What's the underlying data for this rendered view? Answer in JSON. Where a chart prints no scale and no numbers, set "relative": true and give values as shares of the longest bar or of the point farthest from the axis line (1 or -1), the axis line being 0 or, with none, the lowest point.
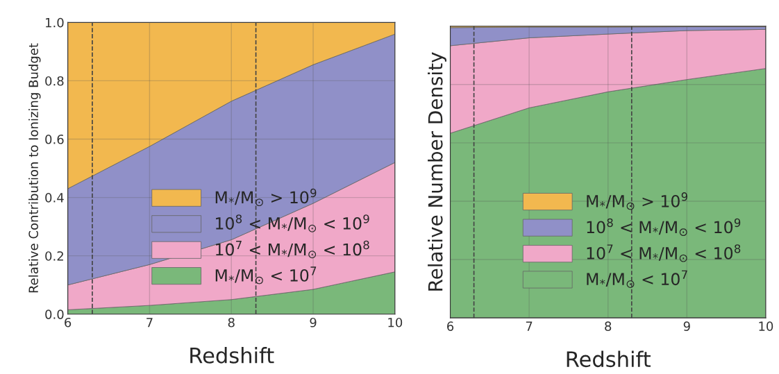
{
  "chart_data": [
    {
      "type": "area",
      "stacked": true,
      "xlabel": "Redshift",
      "ylabel": "Relative Contribution to Ionizing Budget",
      "x": [
        6,
        7,
        8,
        9,
        10
      ],
      "xlim": [
        6,
        10
      ],
      "xticks": [
        6,
        7,
        8,
        9,
        10
      ],
      "ylim": [
        0,
        1
      ],
      "yticks": [
        {
          "value": 0,
          "label": "0.0"
        },
        0.2,
        0.4,
        0.6,
        0.8,
        {
          "value": 1,
          "label": "1.0"
        }
      ],
      "grid": true,
      "legend": "bottom right",
      "series": [
        {
          "name": "M$_{*}$/M$_{⊙}$ < 10$^{7}$",
          "color": "#7ab87a",
          "values": [
            0.015,
            0.03,
            0.05,
            0.085,
            0.145
          ]
        },
        {
          "name": "10$^{7}$ < M$_{*}$/M$_{⊙}$ < 10$^{8}$",
          "color": "#f0a8c8",
          "values": [
            0.085,
            0.14,
            0.205,
            0.295,
            0.375
          ]
        },
        {
          "name": "10$^{8}$ < M$_{*}$/M$_{⊙}$ < 10$^{9}$",
          "color": "#9090c8",
          "values": [
            0.33,
            0.405,
            0.475,
            0.475,
            0.44
          ]
        },
        {
          "name": "M$_{*}$/M$_{⊙}$ > 10$^{9}$",
          "color": "#f2b84f",
          "values": [
            0.57,
            0.425,
            0.27,
            0.145,
            0.04
          ]
        }
      ],
      "ref_lines": [
        {
          "axis": "x",
          "value": 6.3,
          "line_style": "dashed",
          "color": "#444444"
        },
        {
          "axis": "x",
          "value": 8.3,
          "line_style": "dashed",
          "color": "#444444"
        }
      ]
    },
    {
      "type": "area",
      "stacked": true,
      "relative": true,
      "xlabel": "Redshift",
      "ylabel": "Relative Number Density",
      "x": [
        6,
        7,
        8,
        9,
        10
      ],
      "xlim": [
        6,
        10
      ],
      "xticks": [
        6,
        7,
        8,
        9,
        10
      ],
      "tick_labels": "x",
      "grid": true,
      "legend": "bottom right",
      "series": [
        {
          "name": "M$_{*}$/M$_{⊙}$ < 10$^{7}$",
          "color": "#7ab87a",
          "values": [
            0.633,
            0.72,
            0.775,
            0.817,
            0.855
          ]
        },
        {
          "name": "10$^{7}$ < M$_{*}$/M$_{⊙}$ < 10$^{8}$",
          "color": "#f0a8c8",
          "values": [
            0.3,
            0.24,
            0.198,
            0.168,
            0.134
          ]
        },
        {
          "name": "10$^{8}$ < M$_{*}$/M$_{⊙}$ < 10$^{9}$",
          "color": "#9090c8",
          "values": [
            0.062,
            0.037,
            0.024,
            0.013,
            0.009
          ]
        },
        {
          "name": "M$_{*}$/M$_{⊙}$ > 10$^{9}$",
          "color": "#f2b84f",
          "values": [
            0.005,
            0.003,
            0.003,
            0.002,
            0.002
          ]
        }
      ],
      "ref_lines": [
        {
          "axis": "x",
          "value": 6.3,
          "line_style": "dashed",
          "color": "#444444"
        },
        {
          "axis": "x",
          "value": 8.3,
          "line_style": "dashed",
          "color": "#444444"
        }
      ]
    }
  ]
}
